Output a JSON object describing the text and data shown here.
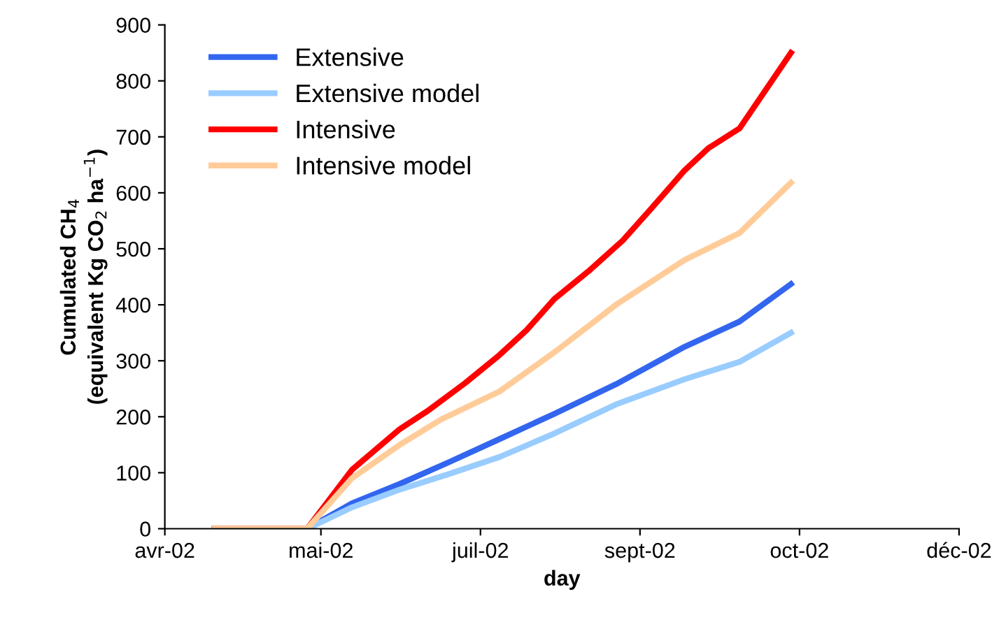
{
  "chart_data": {
    "type": "line",
    "xlabel": "day",
    "ylabel": "Cumulated CH$_{4}$\n(equivalent Kg CO$_{2}$ ha$^{−1}$)",
    "xlim": [
      "2002-04-15T12:00",
      "2002-12-03T00:00"
    ],
    "xticks": [
      {
        "value": "2002-04-15T12:00",
        "label": "avr-02"
      },
      {
        "value": "2002-05-31T00:00",
        "label": "mai-02"
      },
      {
        "value": "2002-07-16T12:00",
        "label": "juil-02"
      },
      {
        "value": "2002-09-01T00:00",
        "label": "sept-02"
      },
      {
        "value": "2002-10-17T12:00",
        "label": "oct-02"
      },
      {
        "value": "2002-12-03T00:00",
        "label": "déc-02"
      }
    ],
    "ylim": [
      0,
      900
    ],
    "yticks": [
      0,
      100,
      200,
      300,
      400,
      500,
      600,
      700,
      800,
      900
    ],
    "legend": "top left",
    "line_style": "solid",
    "series": [
      {
        "name": "Extensive",
        "color": "#3366ee",
        "x": [
          "2002-04-30",
          "2002-05-27",
          "2002-06-09",
          "2002-06-23",
          "2002-07-07",
          "2002-07-22",
          "2002-08-07",
          "2002-08-25",
          "2002-09-14",
          "2002-09-30",
          "2002-10-15"
        ],
        "values": [
          0,
          0,
          45,
          80,
          118,
          160,
          205,
          258,
          325,
          370,
          437
        ]
      },
      {
        "name": "Extensive model",
        "color": "#99ccff",
        "x": [
          "2002-04-30",
          "2002-05-27",
          "2002-06-09",
          "2002-06-23",
          "2002-07-07",
          "2002-07-22",
          "2002-08-07",
          "2002-08-25",
          "2002-09-14",
          "2002-09-30",
          "2002-10-15"
        ],
        "values": [
          0,
          0,
          38,
          70,
          97,
          128,
          170,
          222,
          267,
          298,
          350
        ]
      },
      {
        "name": "Intensive",
        "color": "#ff0000",
        "x": [
          "2002-04-30",
          "2002-05-27",
          "2002-06-09",
          "2002-06-23",
          "2002-07-01",
          "2002-07-12",
          "2002-07-22",
          "2002-07-30",
          "2002-08-07",
          "2002-08-17",
          "2002-08-27",
          "2002-09-04",
          "2002-09-14",
          "2002-09-21",
          "2002-09-30",
          "2002-10-15"
        ],
        "values": [
          0,
          0,
          105,
          178,
          210,
          260,
          310,
          355,
          410,
          460,
          515,
          570,
          640,
          680,
          715,
          850
        ]
      },
      {
        "name": "Intensive model",
        "color": "#ffcc99",
        "x": [
          "2002-04-30",
          "2002-05-27",
          "2002-06-09",
          "2002-06-23",
          "2002-07-05",
          "2002-07-22",
          "2002-08-07",
          "2002-08-25",
          "2002-09-14",
          "2002-09-30",
          "2002-10-15"
        ],
        "values": [
          0,
          0,
          90,
          150,
          195,
          245,
          315,
          400,
          480,
          528,
          618
        ]
      }
    ]
  }
}
